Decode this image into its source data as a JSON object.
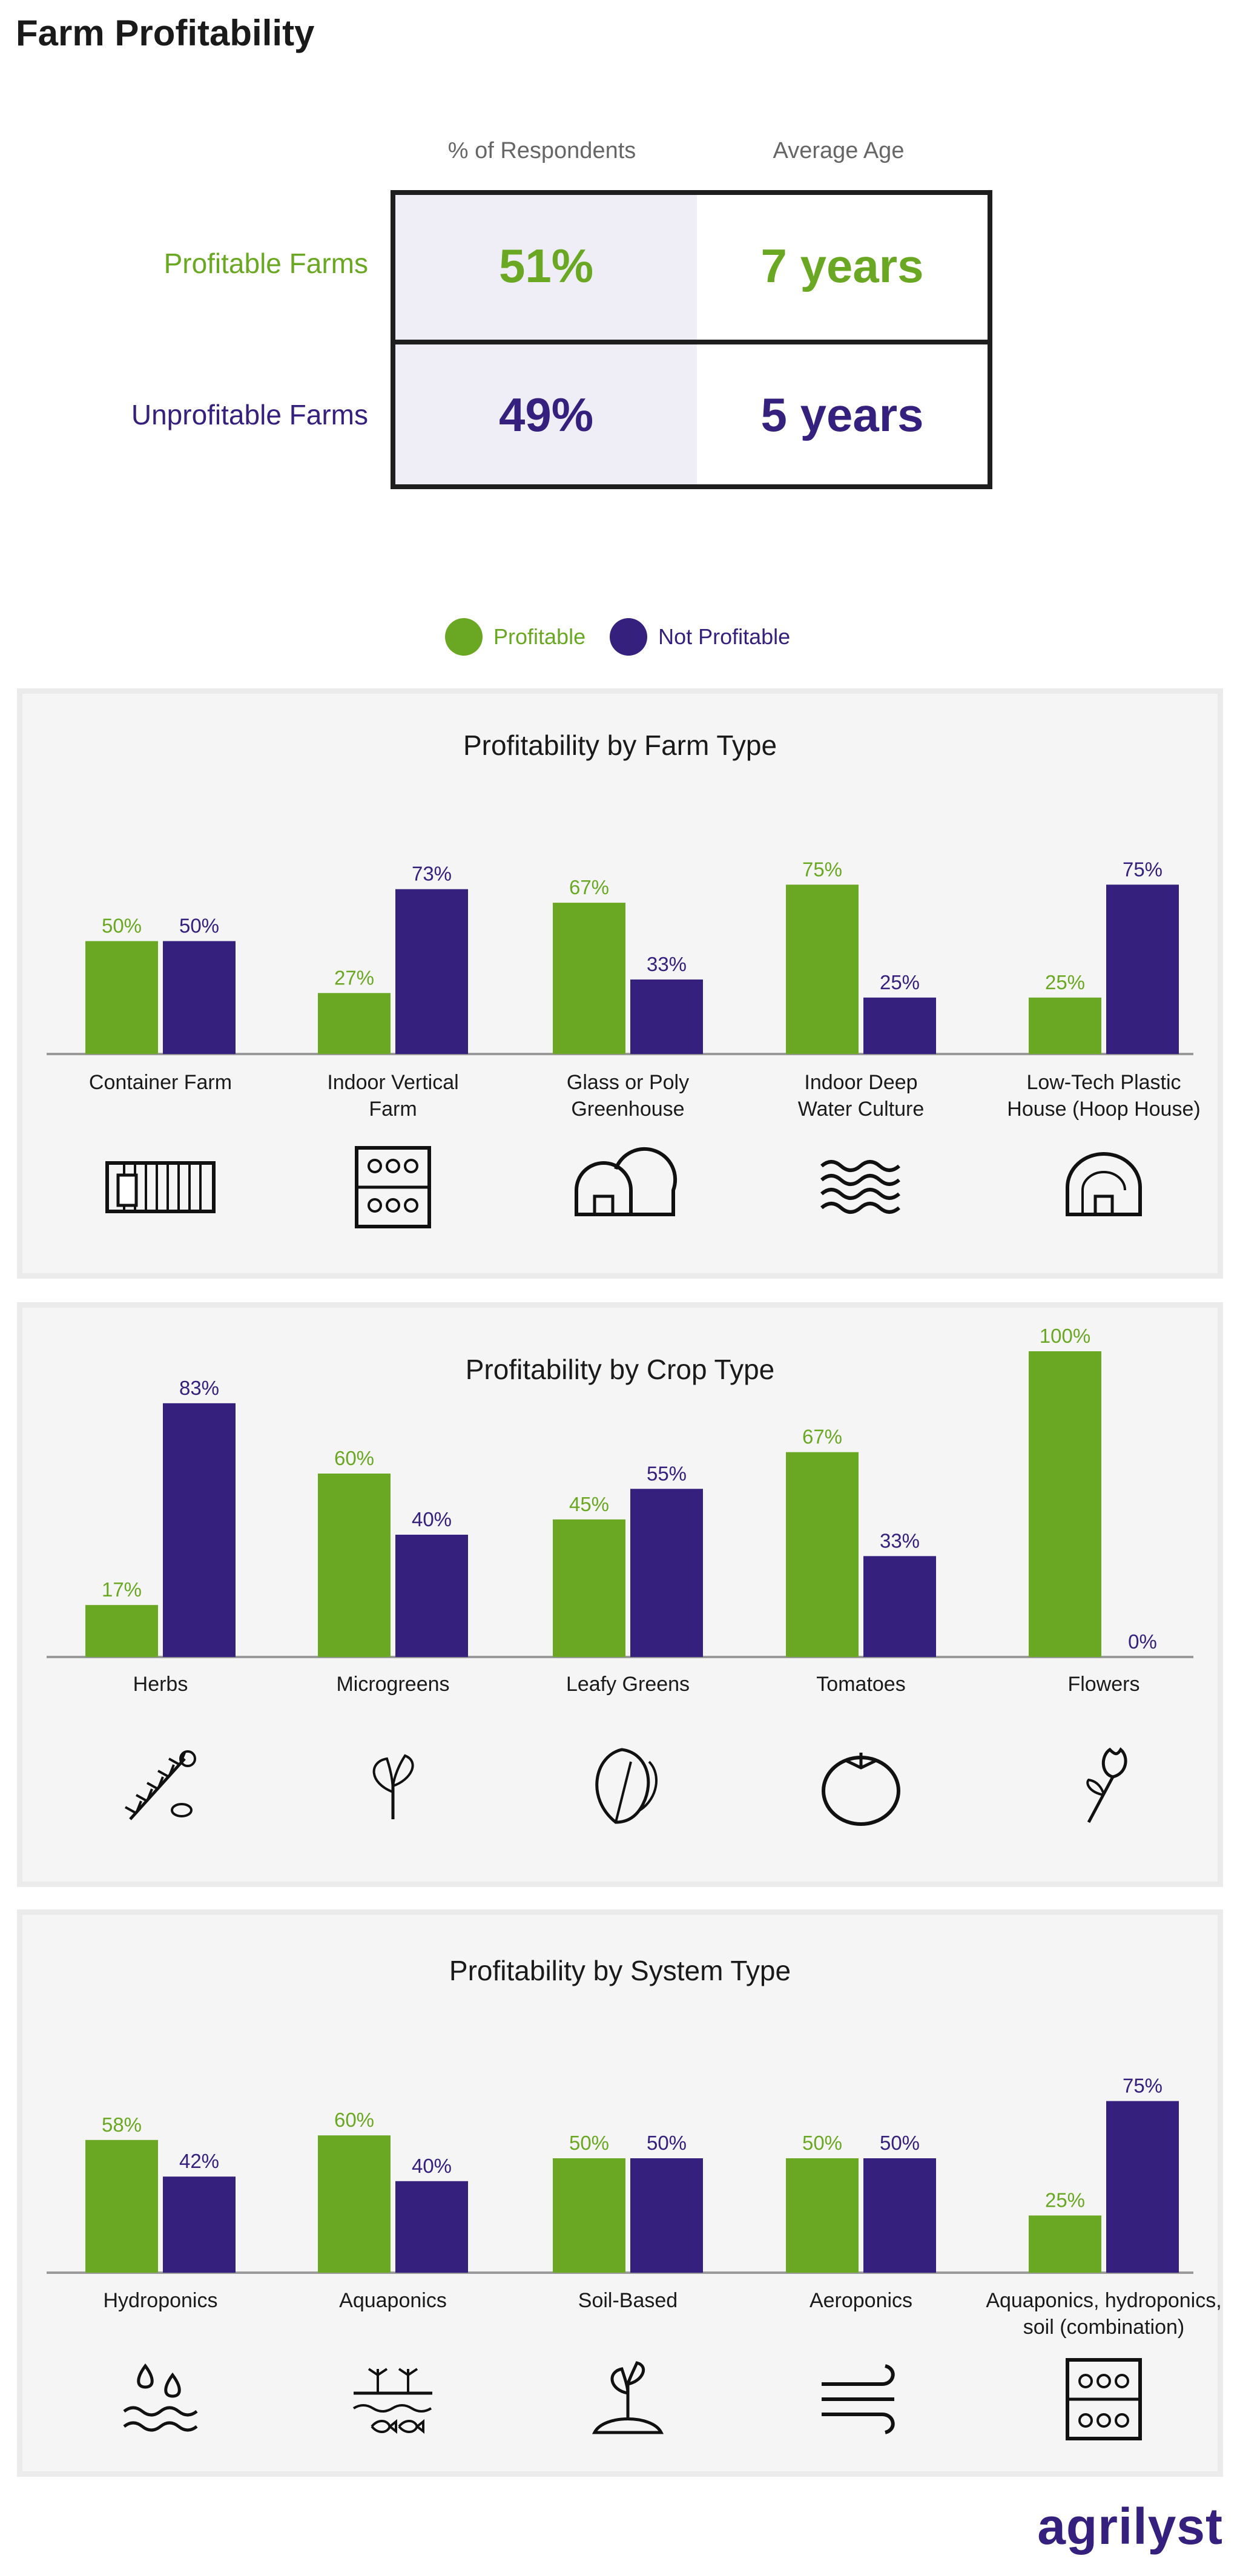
{
  "page_title": "Farm Profitability",
  "colors": {
    "profitable": "#6aa823",
    "not_profitable": "#35207e"
  },
  "summary_table": {
    "col_headers": [
      "% of Respondents",
      "Average Age"
    ],
    "rows": [
      {
        "label": "Profitable Farms",
        "respondents": "51%",
        "average_age": "7 years"
      },
      {
        "label": "Unprofitable Farms",
        "respondents": "49%",
        "average_age": "5 years"
      }
    ]
  },
  "legend": {
    "profitable": "Profitable",
    "not_profitable": "Not Profitable"
  },
  "chart_data": [
    {
      "type": "bar",
      "title": "Profitability by Farm Type",
      "categories": [
        "Container Farm",
        "Indoor Vertical Farm",
        "Glass or Poly Greenhouse",
        "Indoor Deep Water Culture",
        "Low-Tech Plastic House (Hoop House)"
      ],
      "category_lines": [
        [
          "Container Farm"
        ],
        [
          "Indoor Vertical",
          "Farm"
        ],
        [
          "Glass or Poly",
          "Greenhouse"
        ],
        [
          "Indoor Deep",
          "Water Culture"
        ],
        [
          "Low-Tech Plastic",
          "House (Hoop House)"
        ]
      ],
      "icons": [
        "container-icon",
        "vertical-farm-icon",
        "greenhouse-icon",
        "waves-icon",
        "hoop-house-icon"
      ],
      "series": [
        {
          "name": "Profitable",
          "values": [
            50,
            27,
            67,
            75,
            25
          ]
        },
        {
          "name": "Not Profitable",
          "values": [
            50,
            73,
            33,
            25,
            75
          ]
        }
      ],
      "unit": "%",
      "ylim": [
        0,
        100
      ],
      "grid": false
    },
    {
      "type": "bar",
      "title": "Profitability by Crop Type",
      "categories": [
        "Herbs",
        "Microgreens",
        "Leafy Greens",
        "Tomatoes",
        "Flowers"
      ],
      "category_lines": [
        [
          "Herbs"
        ],
        [
          "Microgreens"
        ],
        [
          "Leafy Greens"
        ],
        [
          "Tomatoes"
        ],
        [
          "Flowers"
        ]
      ],
      "icons": [
        "herbs-icon",
        "microgreens-icon",
        "leafy-greens-icon",
        "tomato-icon",
        "flower-icon"
      ],
      "series": [
        {
          "name": "Profitable",
          "values": [
            17,
            60,
            45,
            67,
            100
          ]
        },
        {
          "name": "Not Profitable",
          "values": [
            83,
            40,
            55,
            33,
            0
          ]
        }
      ],
      "unit": "%",
      "ylim": [
        0,
        100
      ],
      "grid": false
    },
    {
      "type": "bar",
      "title": "Profitability by System Type",
      "categories": [
        "Hydroponics",
        "Aquaponics",
        "Soil-Based",
        "Aeroponics",
        "Aquaponics, hydroponics, soil (combination)"
      ],
      "category_lines": [
        [
          "Hydroponics"
        ],
        [
          "Aquaponics"
        ],
        [
          "Soil-Based"
        ],
        [
          "Aeroponics"
        ],
        [
          "Aquaponics, hydroponics,",
          "soil (combination)"
        ]
      ],
      "icons": [
        "water-drops-icon",
        "aquaponics-icon",
        "seedling-icon",
        "wind-icon",
        "combination-farm-icon"
      ],
      "series": [
        {
          "name": "Profitable",
          "values": [
            58,
            60,
            50,
            50,
            25
          ]
        },
        {
          "name": "Not Profitable",
          "values": [
            42,
            40,
            50,
            50,
            75
          ]
        }
      ],
      "unit": "%",
      "ylim": [
        0,
        100
      ],
      "grid": false
    }
  ],
  "logo": {
    "text": "agrilyst"
  }
}
